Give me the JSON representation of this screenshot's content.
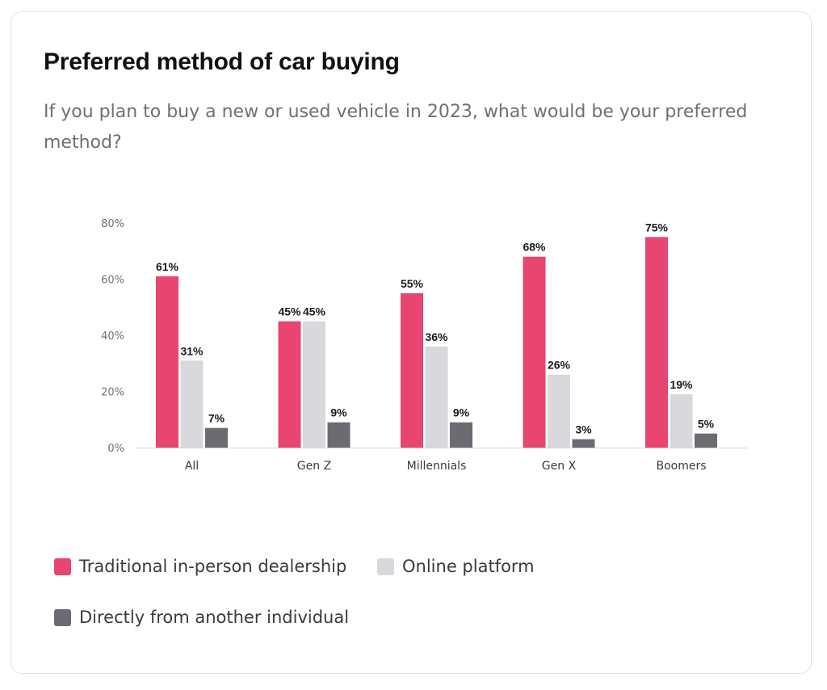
{
  "chart_data": {
    "type": "bar",
    "title": "Preferred method of car buying",
    "subtitle": "If you plan to buy a new or used vehicle in 2023, what would be your preferred method?",
    "categories": [
      "All",
      "Gen Z",
      "Millennials",
      "Gen X",
      "Boomers"
    ],
    "series": [
      {
        "name": "Traditional in-person dealership",
        "color": "#e84570",
        "values": [
          61,
          45,
          55,
          68,
          75
        ]
      },
      {
        "name": "Online platform",
        "color": "#d9d9dd",
        "values": [
          31,
          45,
          36,
          26,
          19
        ]
      },
      {
        "name": "Directly from another individual",
        "color": "#6b6b72",
        "values": [
          7,
          9,
          9,
          3,
          5
        ]
      }
    ],
    "ylim": [
      0,
      80
    ],
    "yticks": [
      0,
      20,
      40,
      60,
      80
    ],
    "ytick_labels": [
      "0%",
      "20%",
      "40%",
      "60%",
      "80%"
    ],
    "value_suffix": "%",
    "grid": false,
    "legend_position": "bottom"
  }
}
